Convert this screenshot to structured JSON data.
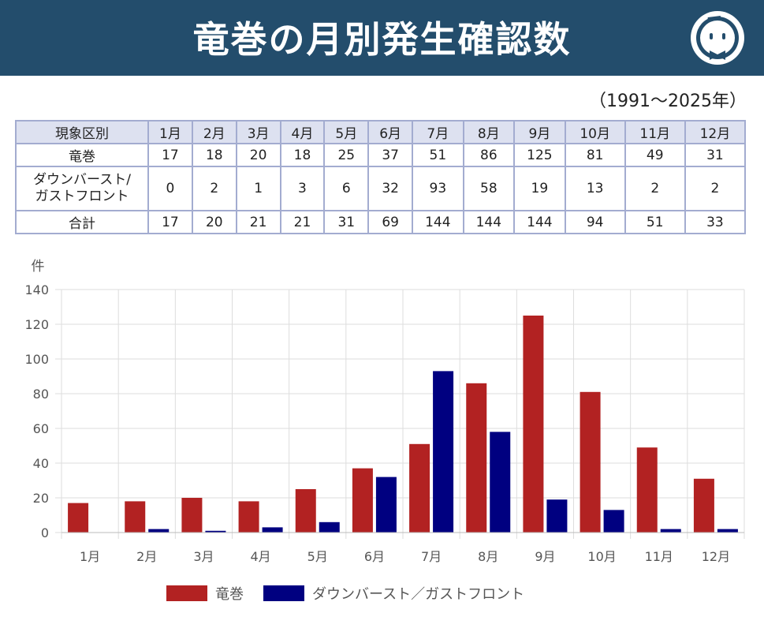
{
  "title": "竜巻の月別発生確認数",
  "period": "（1991〜2025年）",
  "table": {
    "header": [
      "現象区別",
      "1月",
      "2月",
      "3月",
      "4月",
      "5月",
      "6月",
      "7月",
      "8月",
      "9月",
      "10月",
      "11月",
      "12月"
    ],
    "rows": [
      {
        "label": "竜巻",
        "values": [
          "17",
          "18",
          "20",
          "18",
          "25",
          "37",
          "51",
          "86",
          "125",
          "81",
          "49",
          "31"
        ]
      },
      {
        "label": "ダウンバースト/ガストフロント",
        "label1": "ダウンバースト/",
        "label2": "ガストフロント",
        "values": [
          "0",
          "2",
          "1",
          "3",
          "6",
          "32",
          "93",
          "58",
          "19",
          "13",
          "2",
          "2"
        ]
      },
      {
        "label": "合計",
        "values": [
          "17",
          "20",
          "21",
          "21",
          "31",
          "69",
          "144",
          "144",
          "144",
          "94",
          "51",
          "33"
        ]
      }
    ]
  },
  "chart_data": {
    "type": "bar",
    "categories": [
      "1月",
      "2月",
      "3月",
      "4月",
      "5月",
      "6月",
      "7月",
      "8月",
      "9月",
      "10月",
      "11月",
      "12月"
    ],
    "series": [
      {
        "name": "竜巻",
        "color": "#b22222",
        "values": [
          17,
          18,
          20,
          18,
          25,
          37,
          51,
          86,
          125,
          81,
          49,
          31
        ]
      },
      {
        "name": "ダウンバースト／ガストフロント",
        "color": "#000080",
        "values": [
          0,
          2,
          1,
          3,
          6,
          32,
          93,
          58,
          19,
          13,
          2,
          2
        ]
      }
    ],
    "ylabel": "件",
    "ylim": [
      0,
      140
    ],
    "yticks": [
      0,
      20,
      40,
      60,
      80,
      100,
      120,
      140
    ],
    "grid": true,
    "legend": "bottom"
  }
}
